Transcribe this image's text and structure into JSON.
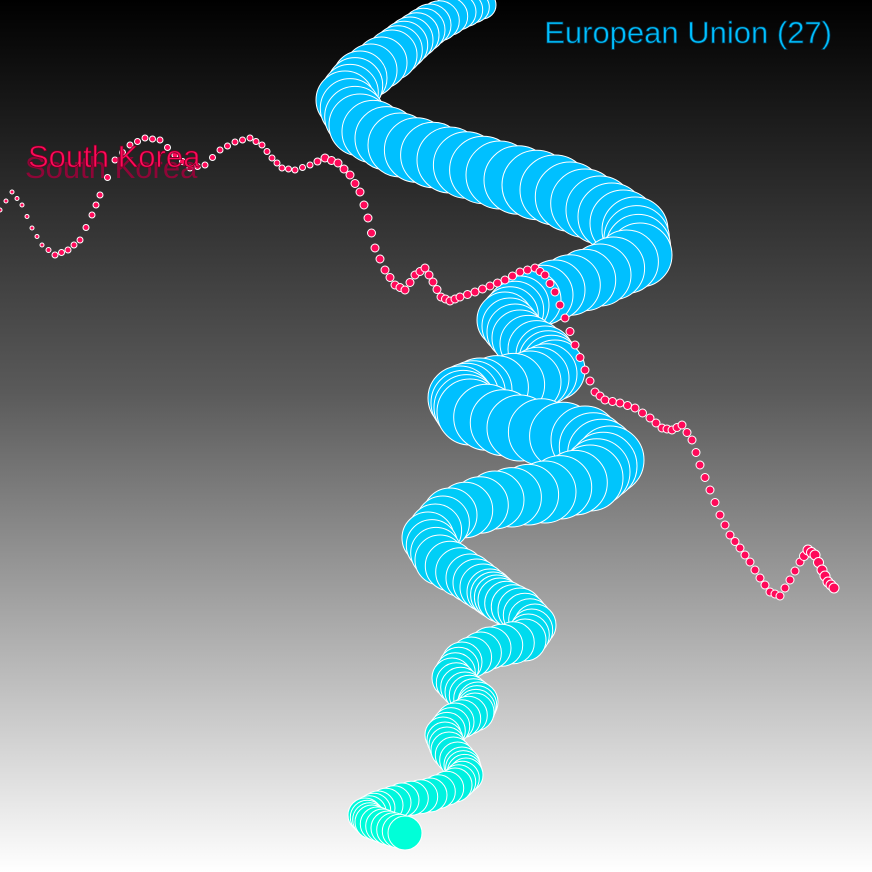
{
  "chart_data": {
    "type": "scatter",
    "title": "",
    "xlabel": "",
    "ylabel": "",
    "grid": false,
    "legend": "none",
    "series": [
      {
        "name": "European Union (27)",
        "color": "#00c0ff",
        "color_end": "#00ffd8",
        "marker": "circle-sized",
        "x": [
          482,
          458,
          430,
          410,
          392,
          360,
          345,
          360,
          400,
          450,
          500,
          555,
          600,
          635,
          640,
          600,
          555,
          520,
          505,
          520,
          545,
          555,
          530,
          480,
          460,
          470,
          520,
          585,
          610,
          590,
          545,
          495,
          450,
          428,
          440,
          470,
          490,
          500,
          520,
          535,
          525,
          490,
          462,
          452,
          465,
          478,
          475,
          455,
          443,
          449,
          462,
          466,
          455,
          430,
          402,
          378,
          365,
          372,
          388,
          405
        ],
        "y": [
          5,
          12,
          25,
          40,
          55,
          78,
          100,
          125,
          145,
          160,
          175,
          190,
          210,
          230,
          255,
          275,
          290,
          305,
          320,
          338,
          355,
          370,
          382,
          390,
          398,
          412,
          428,
          440,
          460,
          478,
          492,
          500,
          515,
          538,
          560,
          578,
          592,
          600,
          610,
          625,
          640,
          648,
          662,
          678,
          692,
          702,
          712,
          722,
          735,
          750,
          765,
          775,
          785,
          795,
          800,
          808,
          815,
          822,
          828,
          833
        ],
        "size": [
          14,
          18,
          21,
          23,
          25,
          27,
          29,
          31,
          32,
          33,
          34,
          35,
          34,
          33,
          32,
          31,
          30,
          29,
          28,
          28,
          29,
          30,
          31,
          32,
          32,
          33,
          33,
          34,
          34,
          33,
          31,
          29,
          27,
          26,
          25,
          24,
          23,
          22,
          22,
          21,
          21,
          21,
          20,
          20,
          20,
          20,
          19,
          19,
          18,
          18,
          18,
          17,
          17,
          17,
          17,
          17,
          17,
          17,
          17,
          17
        ]
      },
      {
        "name": "South Korea",
        "color": "#ff0a5a",
        "marker": "circle-sized",
        "x": [
          0,
          12,
          22,
          32,
          42,
          55,
          68,
          80,
          92,
          100,
          115,
          130,
          145,
          160,
          175,
          190,
          205,
          220,
          235,
          250,
          262,
          272,
          282,
          295,
          310,
          325,
          338,
          350,
          360,
          368,
          375,
          385,
          395,
          405,
          415,
          425,
          433,
          441,
          450,
          460,
          475,
          490,
          505,
          520,
          535,
          545,
          555,
          565,
          575,
          585,
          595,
          605,
          620,
          635,
          650,
          662,
          672,
          682,
          692,
          700,
          710,
          720,
          730,
          740,
          750,
          760,
          770,
          780,
          790,
          800,
          808,
          815,
          822,
          828,
          834
        ],
        "y": [
          210,
          192,
          205,
          228,
          245,
          255,
          250,
          240,
          215,
          195,
          160,
          145,
          138,
          140,
          155,
          168,
          165,
          150,
          142,
          138,
          145,
          158,
          168,
          170,
          165,
          158,
          163,
          175,
          192,
          218,
          248,
          270,
          285,
          290,
          275,
          268,
          282,
          297,
          301,
          297,
          292,
          286,
          280,
          272,
          268,
          275,
          292,
          318,
          345,
          370,
          392,
          400,
          403,
          408,
          418,
          428,
          430,
          425,
          440,
          465,
          490,
          515,
          535,
          548,
          562,
          578,
          592,
          596,
          580,
          562,
          550,
          555,
          570,
          582,
          588
        ],
        "size": [
          2,
          2,
          2,
          2,
          2,
          3,
          3,
          3,
          3,
          3,
          3,
          3,
          3,
          3,
          3,
          3,
          3,
          3,
          3,
          3,
          3,
          3,
          3,
          3,
          3,
          4,
          4,
          4,
          4,
          4,
          4,
          4,
          4,
          4,
          4,
          4,
          4,
          4,
          4,
          4,
          4,
          4,
          4,
          4,
          4,
          4,
          4,
          4,
          4,
          4,
          4,
          4,
          4,
          4,
          4,
          4,
          4,
          4,
          4,
          4,
          4,
          4,
          4,
          4,
          4,
          4,
          4,
          4,
          4,
          4,
          5,
          5,
          5,
          5,
          5
        ]
      }
    ]
  }
}
